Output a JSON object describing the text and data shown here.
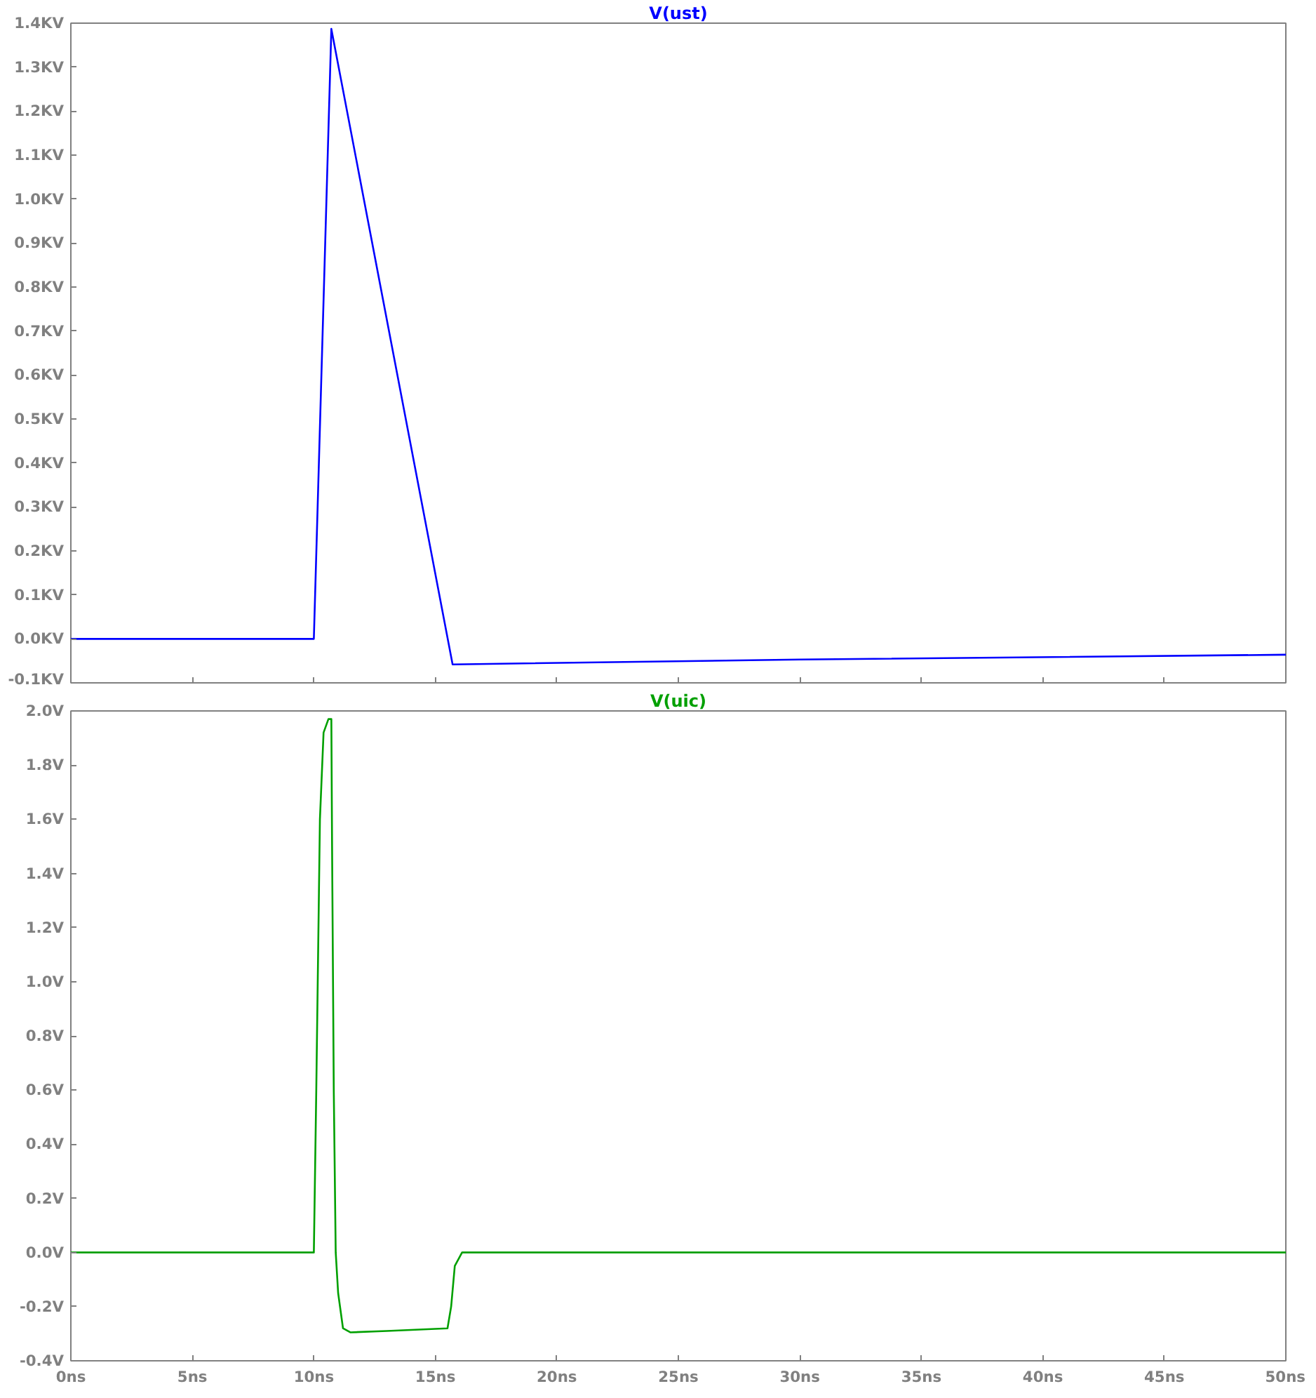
{
  "chart_data": [
    {
      "type": "line",
      "title": "V(ust)",
      "tick_labels": "y",
      "xlim": [
        0,
        50
      ],
      "ylim": [
        -0.1,
        1.4
      ],
      "xticks": [
        {
          "value": 0,
          "label": null
        },
        {
          "value": 5,
          "label": null
        },
        {
          "value": 10,
          "label": null
        },
        {
          "value": 15,
          "label": null
        },
        {
          "value": 20,
          "label": null
        },
        {
          "value": 25,
          "label": null
        },
        {
          "value": 30,
          "label": null
        },
        {
          "value": 35,
          "label": null
        },
        {
          "value": 40,
          "label": null
        },
        {
          "value": 45,
          "label": null
        },
        {
          "value": 50,
          "label": null
        }
      ],
      "yticks": [
        {
          "value": -0.1,
          "label": "-0.1KV"
        },
        {
          "value": 0,
          "label": "0.0KV"
        },
        {
          "value": 0.1,
          "label": "0.1KV"
        },
        {
          "value": 0.2,
          "label": "0.2KV"
        },
        {
          "value": 0.3,
          "label": "0.3KV"
        },
        {
          "value": 0.4,
          "label": "0.4KV"
        },
        {
          "value": 0.5,
          "label": "0.5KV"
        },
        {
          "value": 0.6,
          "label": "0.6KV"
        },
        {
          "value": 0.7,
          "label": "0.7KV"
        },
        {
          "value": 0.8,
          "label": "0.8KV"
        },
        {
          "value": 0.9,
          "label": "0.9KV"
        },
        {
          "value": 1.0,
          "label": "1.0KV"
        },
        {
          "value": 1.1,
          "label": "1.1KV"
        },
        {
          "value": 1.2,
          "label": "1.2KV"
        },
        {
          "value": 1.3,
          "label": "1.3KV"
        },
        {
          "value": 1.4,
          "label": "1.4KV"
        }
      ],
      "x": [
        0,
        10,
        10.72,
        15.71,
        30,
        50
      ],
      "series": [
        {
          "color": "#0000ff",
          "values": [
            0,
            0,
            1.387,
            -0.058,
            -0.047,
            -0.036
          ]
        }
      ]
    },
    {
      "type": "line",
      "title": "V(uic)",
      "xlim": [
        0,
        50
      ],
      "ylim": [
        -0.4,
        2.0
      ],
      "xticks": [
        {
          "value": 0,
          "label": "0ns"
        },
        {
          "value": 5,
          "label": "5ns"
        },
        {
          "value": 10,
          "label": "10ns"
        },
        {
          "value": 15,
          "label": "15ns"
        },
        {
          "value": 20,
          "label": "20ns"
        },
        {
          "value": 25,
          "label": "25ns"
        },
        {
          "value": 30,
          "label": "30ns"
        },
        {
          "value": 35,
          "label": "35ns"
        },
        {
          "value": 40,
          "label": "40ns"
        },
        {
          "value": 45,
          "label": "45ns"
        },
        {
          "value": 50,
          "label": "50ns"
        }
      ],
      "yticks": [
        {
          "value": -0.4,
          "label": "-0.4V"
        },
        {
          "value": -0.2,
          "label": "-0.2V"
        },
        {
          "value": 0,
          "label": "0.0V"
        },
        {
          "value": 0.2,
          "label": "0.2V"
        },
        {
          "value": 0.4,
          "label": "0.4V"
        },
        {
          "value": 0.6,
          "label": "0.6V"
        },
        {
          "value": 0.8,
          "label": "0.8V"
        },
        {
          "value": 1.0,
          "label": "1.0V"
        },
        {
          "value": 1.2,
          "label": "1.2V"
        },
        {
          "value": 1.4,
          "label": "1.4V"
        },
        {
          "value": 1.6,
          "label": "1.6V"
        },
        {
          "value": 1.8,
          "label": "1.8V"
        },
        {
          "value": 2.0,
          "label": "2.0V"
        }
      ],
      "x": [
        0,
        10,
        10.1,
        10.25,
        10.4,
        10.6,
        10.72,
        10.75,
        10.82,
        10.9,
        11.0,
        11.2,
        11.5,
        13,
        15.5,
        15.65,
        15.8,
        16.1,
        50
      ],
      "series": [
        {
          "color": "#00a000",
          "values": [
            0,
            0,
            0.6,
            1.6,
            1.92,
            1.97,
            1.97,
            1.5,
            0.6,
            0,
            -0.15,
            -0.28,
            -0.295,
            -0.29,
            -0.28,
            -0.2,
            -0.05,
            0,
            0
          ]
        }
      ]
    }
  ]
}
